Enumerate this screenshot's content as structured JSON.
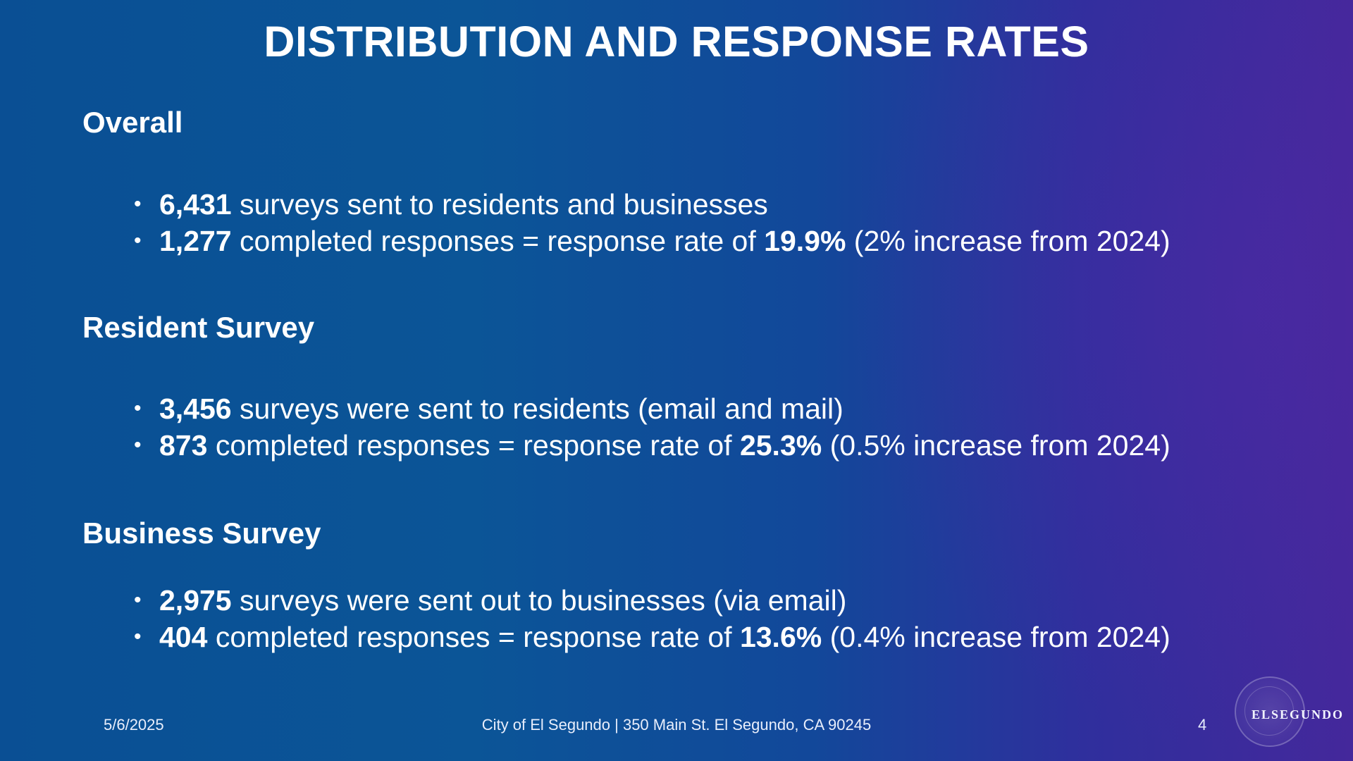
{
  "title": "DISTRIBUTION AND RESPONSE RATES",
  "sections": [
    {
      "heading": "Overall",
      "bullets": [
        {
          "bold": "6,431",
          "text": " surveys sent to residents and businesses",
          "rate": "",
          "tail": ""
        },
        {
          "bold": "1,277",
          "text": " completed responses = response rate of ",
          "rate": "19.9%",
          "tail": " (2% increase from 2024)"
        }
      ]
    },
    {
      "heading": "Resident Survey",
      "bullets": [
        {
          "bold": "3,456",
          "text": " surveys were sent to residents (email and mail)",
          "rate": "",
          "tail": ""
        },
        {
          "bold": "873",
          "text": " completed responses = response rate of ",
          "rate": "25.3%",
          "tail": " (0.5% increase from 2024)"
        }
      ]
    },
    {
      "heading": "Business Survey",
      "bullets": [
        {
          "bold": "2,975",
          "text": " surveys were sent out to businesses (via email)",
          "rate": "",
          "tail": ""
        },
        {
          "bold": "404",
          "text": " completed responses = response rate of ",
          "rate": "13.6%",
          "tail": " (0.4% increase from 2024)"
        }
      ]
    }
  ],
  "footer": {
    "date": "5/6/2025",
    "address": "City of El Segundo | 350 Main St. El Segundo, CA 90245",
    "page": "4"
  },
  "logo": {
    "text": "ELSEGUNDO",
    "icon": "city-seal-icon"
  }
}
